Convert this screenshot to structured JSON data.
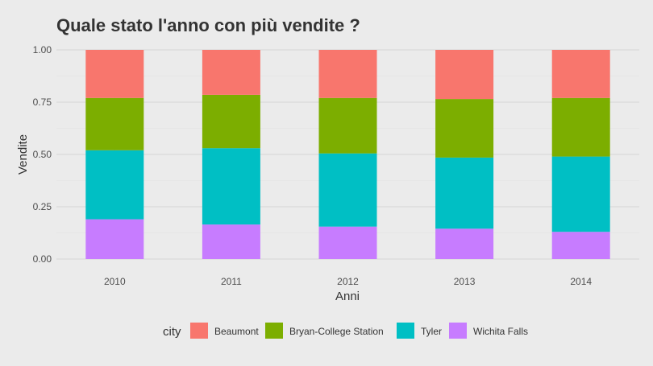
{
  "chart_data": {
    "type": "bar",
    "stacked": true,
    "title": "Quale stato l'anno con più vendite ?",
    "xlabel": "Anni",
    "ylabel": "Vendite",
    "ylim": [
      0,
      1
    ],
    "yticks": [
      "0.00",
      "0.25",
      "0.50",
      "0.75",
      "1.00"
    ],
    "categories": [
      "2010",
      "2011",
      "2012",
      "2013",
      "2014"
    ],
    "legend": {
      "title": "city",
      "position": "bottom"
    },
    "series": [
      {
        "name": "Wichita Falls",
        "color": "#c77cff",
        "values": [
          0.19,
          0.165,
          0.155,
          0.145,
          0.13
        ]
      },
      {
        "name": "Tyler",
        "color": "#00bfc4",
        "values": [
          0.33,
          0.365,
          0.35,
          0.34,
          0.36
        ]
      },
      {
        "name": "Bryan-College Station",
        "color": "#7cae00",
        "values": [
          0.25,
          0.255,
          0.265,
          0.28,
          0.28
        ]
      },
      {
        "name": "Beaumont",
        "color": "#f8766d",
        "values": [
          0.23,
          0.215,
          0.23,
          0.235,
          0.23
        ]
      }
    ],
    "legend_order": [
      "Beaumont",
      "Bryan-College Station",
      "Tyler",
      "Wichita Falls"
    ],
    "grid": true
  }
}
